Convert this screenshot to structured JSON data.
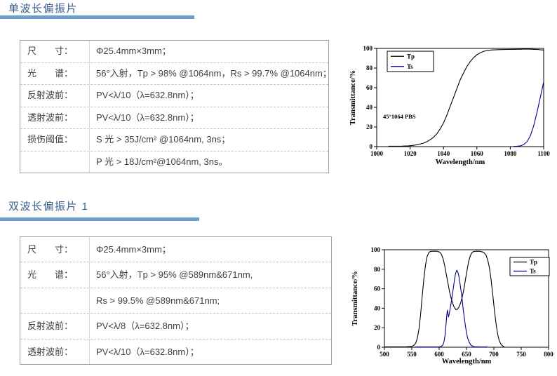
{
  "colors": {
    "heading": "#3c618e",
    "underline": "#6d9ecf",
    "table_border": "#a0a0a0",
    "table_text": "#3f3f3f",
    "curve_tp": "#000000",
    "curve_ts": "#00008b"
  },
  "sections": [
    {
      "title": "单波长偏振片",
      "table": {
        "rows": [
          {
            "label": "尺　　寸：",
            "value": "Φ25.4mm×3mm；"
          },
          {
            "label": "光　　谱：",
            "value": "56°入射，Tp > 98% @1064nm，Rs > 99.7% @1064nm；"
          },
          {
            "label": "反射波前：",
            "value": "PV<λ/10（λ=632.8nm）；"
          },
          {
            "label": "透射波前：",
            "value": "PV<λ/10（λ=632.8nm）；"
          },
          {
            "label": "损伤阈值：",
            "value": "S 光 > 35J/cm² @1064nm, 3ns；"
          },
          {
            "label": "",
            "value": "P 光 > 18J/cm²@1064nm, 3ns。"
          }
        ]
      }
    },
    {
      "title": "双波长偏振片 1",
      "table": {
        "rows": [
          {
            "label": "尺　　寸：",
            "value": "Φ25.4mm×3mm；"
          },
          {
            "label": "光　　谱：",
            "value": "56°入射，Tp > 95% @589nm&671nm,"
          },
          {
            "label": "",
            "value": "Rs > 99.5% @589nm&671nm;"
          },
          {
            "label": "反射波前：",
            "value": "PV<λ/8（λ=632.8nm）；"
          },
          {
            "label": "透射波前：",
            "value": "PV<λ/10（λ=632.8nm）；"
          }
        ]
      }
    }
  ],
  "chart_data": [
    {
      "type": "line",
      "title": "",
      "xlabel": "Wavelength/nm",
      "ylabel": "Transmittance/%",
      "xlim": [
        1000,
        1100
      ],
      "ylim": [
        0,
        100
      ],
      "xticks": [
        1000,
        1020,
        1040,
        1060,
        1080,
        1100
      ],
      "yticks": [
        0,
        20,
        40,
        60,
        80,
        100
      ],
      "grid": false,
      "legend_position": "top-left",
      "annotation": "45°1064 PBS",
      "series": [
        {
          "name": "Tp",
          "color": "#000000",
          "points": [
            [
              1007,
              0.4
            ],
            [
              1015,
              0.5
            ],
            [
              1019,
              0.8
            ],
            [
              1022,
              1.3
            ],
            [
              1025,
              2.2
            ],
            [
              1028,
              3.5
            ],
            [
              1030,
              5
            ],
            [
              1032,
              7
            ],
            [
              1034,
              9.5
            ],
            [
              1036,
              13
            ],
            [
              1038,
              18
            ],
            [
              1040,
              24
            ],
            [
              1042,
              32
            ],
            [
              1044,
              41
            ],
            [
              1046,
              50
            ],
            [
              1048,
              59
            ],
            [
              1050,
              68
            ],
            [
              1052,
              75
            ],
            [
              1054,
              81.5
            ],
            [
              1056,
              86.5
            ],
            [
              1058,
              90.5
            ],
            [
              1060,
              93.5
            ],
            [
              1062,
              95.5
            ],
            [
              1064,
              97
            ],
            [
              1066,
              97.8
            ],
            [
              1069,
              98.4
            ],
            [
              1073,
              98.7
            ],
            [
              1078,
              98.9
            ],
            [
              1083,
              99.1
            ],
            [
              1088,
              99.2
            ],
            [
              1092,
              99.2
            ],
            [
              1096,
              98.9
            ],
            [
              1100,
              98.3
            ]
          ]
        },
        {
          "name": "Ts",
          "color": "#00008b",
          "points": [
            [
              1082,
              0.3
            ],
            [
              1084,
              0.4
            ],
            [
              1086,
              0.8
            ],
            [
              1088,
              2
            ],
            [
              1090,
              5
            ],
            [
              1092,
              11
            ],
            [
              1094,
              21
            ],
            [
              1096,
              35
            ],
            [
              1098,
              50
            ],
            [
              1100,
              66
            ]
          ]
        }
      ]
    },
    {
      "type": "line",
      "title": "",
      "xlabel": "Wavelength/nm",
      "ylabel": "Transmittance/%",
      "xlim": [
        500,
        800
      ],
      "ylim": [
        0,
        100
      ],
      "xticks": [
        500,
        550,
        600,
        650,
        700,
        750,
        800
      ],
      "yticks": [
        0,
        20,
        40,
        60,
        80,
        100
      ],
      "grid": false,
      "legend_position": "top-right",
      "annotation": "",
      "series": [
        {
          "name": "Tp",
          "color": "#000000",
          "points": [
            [
              500,
              0.4
            ],
            [
              520,
              0.4
            ],
            [
              540,
              0.5
            ],
            [
              548,
              0.8
            ],
            [
              553,
              1.5
            ],
            [
              557,
              4
            ],
            [
              560,
              9
            ],
            [
              563,
              18
            ],
            [
              566,
              33
            ],
            [
              569,
              52
            ],
            [
              572,
              70
            ],
            [
              575,
              84
            ],
            [
              578,
              93
            ],
            [
              581,
              97
            ],
            [
              584,
              98.3
            ],
            [
              590,
              98.5
            ],
            [
              596,
              98.4
            ],
            [
              601,
              97.5
            ],
            [
              604,
              95.5
            ],
            [
              607,
              91
            ],
            [
              610,
              84
            ],
            [
              613,
              75
            ],
            [
              616,
              66
            ],
            [
              619,
              57
            ],
            [
              622,
              50
            ],
            [
              625,
              44.5
            ],
            [
              628,
              40.5
            ],
            [
              631,
              38.5
            ],
            [
              633,
              38.8
            ],
            [
              636,
              41
            ],
            [
              639,
              45
            ],
            [
              642,
              51
            ],
            [
              645,
              59
            ],
            [
              648,
              69
            ],
            [
              651,
              79
            ],
            [
              654,
              88
            ],
            [
              657,
              94
            ],
            [
              660,
              97
            ],
            [
              663,
              98.2
            ],
            [
              668,
              98.5
            ],
            [
              674,
              98.4
            ],
            [
              679,
              97.8
            ],
            [
              683,
              96.5
            ],
            [
              686,
              94
            ],
            [
              689,
              89
            ],
            [
              692,
              81
            ],
            [
              695,
              69
            ],
            [
              698,
              54
            ],
            [
              701,
              38
            ],
            [
              704,
              24
            ],
            [
              707,
              13
            ],
            [
              710,
              6.5
            ],
            [
              713,
              3
            ],
            [
              716,
              1.2
            ],
            [
              719,
              0.5
            ]
          ]
        },
        {
          "name": "Ts",
          "color": "#00008b",
          "points": [
            [
              556,
              0.3
            ],
            [
              580,
              0.3
            ],
            [
              600,
              0.4
            ],
            [
              604,
              0.8
            ],
            [
              607,
              2.5
            ],
            [
              609,
              6
            ],
            [
              611,
              13
            ],
            [
              613,
              26
            ],
            [
              614,
              33
            ],
            [
              615,
              38
            ],
            [
              616,
              35
            ],
            [
              617,
              31
            ],
            [
              618,
              33
            ],
            [
              620,
              39
            ],
            [
              622,
              46
            ],
            [
              624,
              53
            ],
            [
              626,
              61
            ],
            [
              628,
              69
            ],
            [
              630,
              75.5
            ],
            [
              632,
              79
            ],
            [
              634,
              77.5
            ],
            [
              636,
              73
            ],
            [
              638,
              66
            ],
            [
              640,
              58
            ],
            [
              642,
              49
            ],
            [
              644,
              39
            ],
            [
              646,
              30
            ],
            [
              648,
              22
            ],
            [
              650,
              15
            ],
            [
              652,
              9.5
            ],
            [
              655,
              5
            ],
            [
              658,
              2.3
            ],
            [
              661,
              1
            ],
            [
              665,
              0.5
            ],
            [
              675,
              0.3
            ],
            [
              688,
              0.3
            ]
          ]
        }
      ]
    }
  ]
}
